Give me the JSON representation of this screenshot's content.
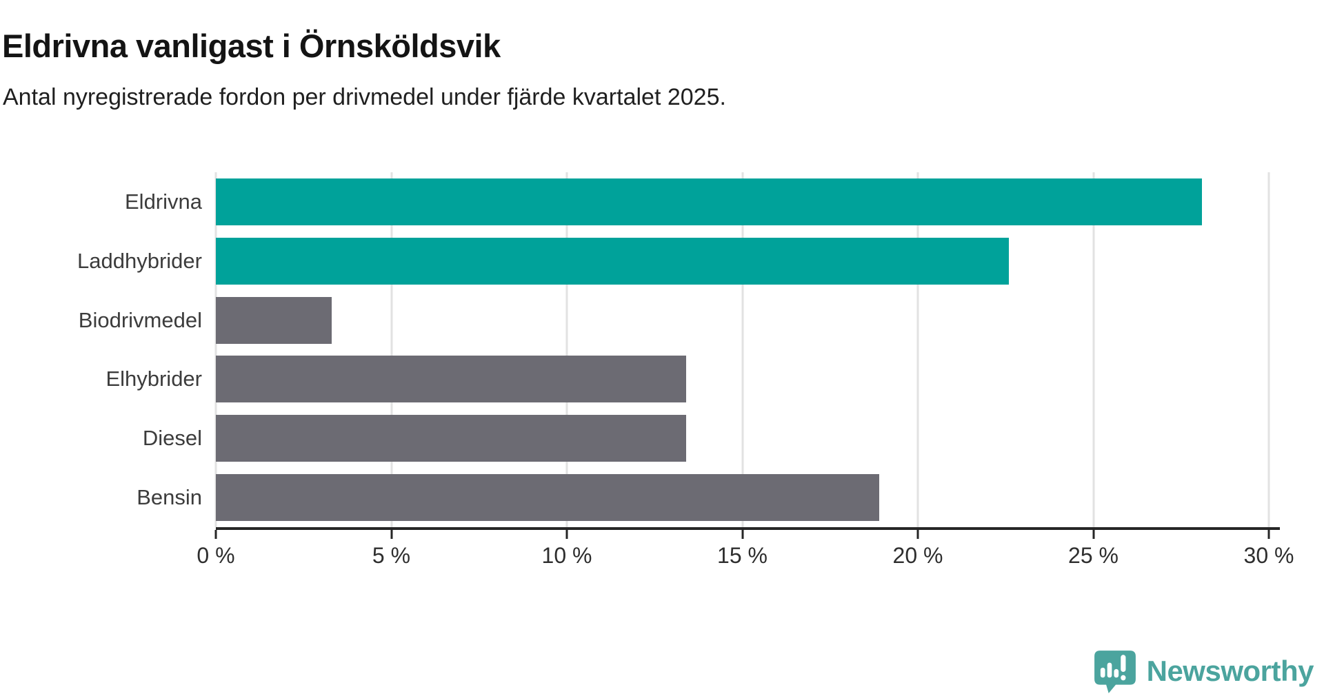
{
  "title": "Eldrivna vanligast i Örnsköldsvik",
  "subtitle": "Antal nyregistrerade fordon per drivmedel under fjärde kvartalet 2025.",
  "colors": {
    "highlight": "#00a29a",
    "default": "#6c6b73",
    "gridline": "#e2e2e2",
    "axis": "#262626",
    "logo": "#4ba49e"
  },
  "chart_data": {
    "type": "bar",
    "orientation": "horizontal",
    "title": "Eldrivna vanligast i Örnsköldsvik",
    "subtitle": "Antal nyregistrerade fordon per drivmedel under fjärde kvartalet 2025.",
    "categories": [
      "Eldrivna",
      "Laddhybrider",
      "Biodrivmedel",
      "Elhybrider",
      "Diesel",
      "Bensin"
    ],
    "values": [
      28.1,
      22.6,
      3.3,
      13.4,
      13.4,
      18.9
    ],
    "unit": "%",
    "bar_color_roles": [
      "highlight",
      "highlight",
      "default",
      "default",
      "default",
      "default"
    ],
    "xlabel": "",
    "ylabel": "",
    "xlim": [
      0,
      30
    ],
    "x_ticks": [
      {
        "value": 0,
        "label": "0 %"
      },
      {
        "value": 5,
        "label": "5 %"
      },
      {
        "value": 10,
        "label": "10 %"
      },
      {
        "value": 15,
        "label": "15 %"
      },
      {
        "value": 20,
        "label": "20 %"
      },
      {
        "value": 25,
        "label": "25 %"
      },
      {
        "value": 30,
        "label": "30 %"
      }
    ],
    "grid": "vertical-only",
    "legend": "none"
  },
  "branding": {
    "logo_text": "Newsworthy",
    "logo_icon": "newsworthy-speech-bubble-bar-chart-icon"
  }
}
